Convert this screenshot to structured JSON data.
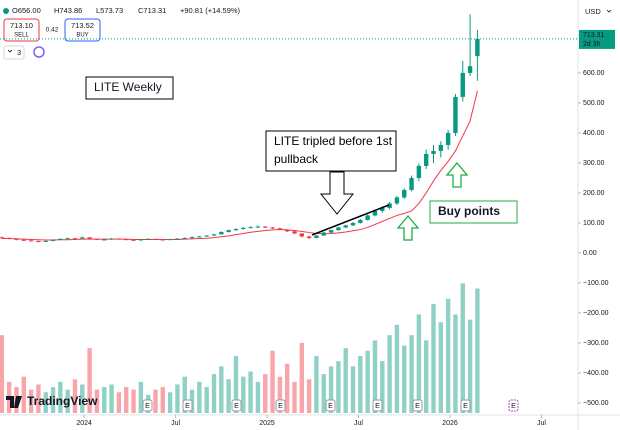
{
  "chart_data": {
    "type": "candlestick",
    "title": "LITE Weekly",
    "annotation": "LITE tripled before 1st pullback",
    "annotation_buy": "Buy points",
    "header": {
      "open": "O656.00",
      "high": "H743.86",
      "low": "L573.73",
      "close": "C713.31",
      "change": "+90.81 (+14.59%)"
    },
    "trade": {
      "sell_price": "713.10",
      "sell_label": "SELL",
      "spread": "0.42",
      "buy_price": "713.52",
      "buy_label": "BUY"
    },
    "indicator_count": "3",
    "currency": "USD",
    "countdown": "2d 3h",
    "last_price_label": "713.31",
    "earnings_label": "E",
    "brand": "TradingView",
    "up_color": "#089981",
    "down_color": "#f23645",
    "ma_color": "#f23645",
    "grid": false,
    "x": [
      2023.55,
      2023.59,
      2023.63,
      2023.67,
      2023.71,
      2023.75,
      2023.79,
      2023.83,
      2023.87,
      2023.91,
      2023.95,
      2023.99,
      2024.03,
      2024.07,
      2024.11,
      2024.15,
      2024.19,
      2024.23,
      2024.27,
      2024.31,
      2024.35,
      2024.39,
      2024.43,
      2024.47,
      2024.51,
      2024.55,
      2024.59,
      2024.63,
      2024.67,
      2024.71,
      2024.75,
      2024.79,
      2024.83,
      2024.87,
      2024.91,
      2024.95,
      2024.99,
      2025.03,
      2025.07,
      2025.11,
      2025.15,
      2025.19,
      2025.23,
      2025.27,
      2025.31,
      2025.35,
      2025.39,
      2025.43,
      2025.47,
      2025.51,
      2025.55,
      2025.59,
      2025.63,
      2025.67,
      2025.71,
      2025.75,
      2025.79,
      2025.83,
      2025.87,
      2025.91,
      2025.95,
      2025.99,
      2026.03,
      2026.07,
      2026.11,
      2026.15
    ],
    "open": [
      52,
      50,
      47,
      44,
      42,
      40,
      38,
      40,
      44,
      47,
      49,
      48,
      52,
      47,
      44,
      45,
      48,
      46,
      44,
      42,
      45,
      47,
      45,
      44,
      46,
      48,
      50,
      53,
      55,
      58,
      62,
      70,
      76,
      80,
      84,
      86,
      88,
      85,
      82,
      78,
      72,
      65,
      55,
      50,
      58,
      68,
      76,
      85,
      92,
      100,
      110,
      125,
      140,
      150,
      165,
      185,
      210,
      250,
      290,
      330,
      340,
      360,
      400,
      520,
      600,
      656
    ],
    "high": [
      55,
      52,
      49,
      46,
      43,
      41,
      42,
      46,
      49,
      51,
      50,
      54,
      53,
      48,
      47,
      50,
      49,
      47,
      45,
      46,
      49,
      48,
      46,
      47,
      49,
      52,
      55,
      57,
      60,
      64,
      72,
      78,
      82,
      86,
      89,
      92,
      90,
      87,
      84,
      79,
      73,
      66,
      57,
      60,
      70,
      78,
      87,
      94,
      103,
      113,
      128,
      143,
      155,
      170,
      190,
      215,
      258,
      298,
      345,
      360,
      372,
      410,
      530,
      640,
      795,
      743.86
    ],
    "low": [
      48,
      45,
      42,
      40,
      38,
      36,
      37,
      39,
      43,
      46,
      46,
      47,
      46,
      43,
      43,
      44,
      45,
      43,
      40,
      41,
      44,
      44,
      42,
      43,
      45,
      47,
      49,
      52,
      54,
      57,
      61,
      68,
      74,
      78,
      82,
      84,
      83,
      80,
      76,
      70,
      63,
      52,
      46,
      49,
      57,
      66,
      74,
      83,
      90,
      98,
      108,
      122,
      134,
      145,
      160,
      180,
      205,
      240,
      280,
      300,
      318,
      345,
      390,
      505,
      590,
      573.73
    ],
    "close": [
      50,
      47,
      44,
      42,
      40,
      38,
      40,
      44,
      47,
      49,
      48,
      52,
      47,
      44,
      45,
      48,
      46,
      44,
      42,
      45,
      47,
      45,
      44,
      46,
      48,
      50,
      53,
      55,
      58,
      62,
      70,
      76,
      80,
      84,
      86,
      88,
      85,
      82,
      78,
      72,
      65,
      55,
      50,
      58,
      68,
      76,
      85,
      92,
      100,
      110,
      125,
      140,
      150,
      165,
      185,
      210,
      250,
      290,
      330,
      340,
      360,
      400,
      520,
      600,
      622.5,
      713.31
    ],
    "ma": [
      48,
      48,
      47,
      46,
      45,
      44,
      43,
      43,
      44,
      44,
      45,
      46,
      46,
      46,
      46,
      46,
      46,
      46,
      45,
      45,
      45,
      45,
      45,
      45,
      45,
      46,
      47,
      48,
      49,
      51,
      54,
      57,
      61,
      65,
      69,
      72,
      75,
      77,
      78,
      77,
      75,
      72,
      68,
      65,
      64,
      65,
      67,
      70,
      74,
      78,
      85,
      95,
      105,
      115,
      125,
      132,
      140,
      165,
      200,
      240,
      275,
      305,
      340,
      390,
      440,
      540
    ],
    "volume": [
      30,
      12,
      10,
      14,
      9,
      11,
      8,
      10,
      12,
      9,
      13,
      11,
      25,
      9,
      10,
      11,
      8,
      10,
      9,
      12,
      7,
      9,
      10,
      8,
      11,
      14,
      9,
      12,
      10,
      15,
      18,
      13,
      22,
      14,
      16,
      12,
      15,
      24,
      14,
      19,
      12,
      27,
      13,
      22,
      15,
      18,
      20,
      25,
      18,
      22,
      24,
      28,
      20,
      30,
      34,
      26,
      30,
      38,
      28,
      42,
      35,
      44,
      38,
      50,
      36,
      48
    ],
    "xlim": [
      2023.54,
      2026.7
    ],
    "ylim": [
      -540,
      843
    ],
    "volume_ylim": [
      0,
      160
    ],
    "xticks": [
      {
        "value": 2024,
        "label": "2024"
      },
      {
        "value": 2024.5,
        "label": "Jul"
      },
      {
        "value": 2025,
        "label": "2025"
      },
      {
        "value": 2025.5,
        "label": "Jul"
      },
      {
        "value": 2026,
        "label": "2026"
      },
      {
        "value": 2026.5,
        "label": "Jul"
      }
    ],
    "yticks": [
      {
        "value": 600,
        "label": "600.00"
      },
      {
        "value": 500,
        "label": "500.00"
      },
      {
        "value": 400,
        "label": "400.00"
      },
      {
        "value": 300,
        "label": "300.00"
      },
      {
        "value": 200,
        "label": "200.00"
      },
      {
        "value": 100,
        "label": "100.00"
      },
      {
        "value": 0,
        "label": "0.00"
      },
      {
        "value": -100,
        "label": "−100.00"
      },
      {
        "value": -200,
        "label": "−200.00"
      },
      {
        "value": -300,
        "label": "−300.00"
      },
      {
        "value": -400,
        "label": "−400.00"
      },
      {
        "value": -500,
        "label": "−500.00"
      }
    ]
  }
}
